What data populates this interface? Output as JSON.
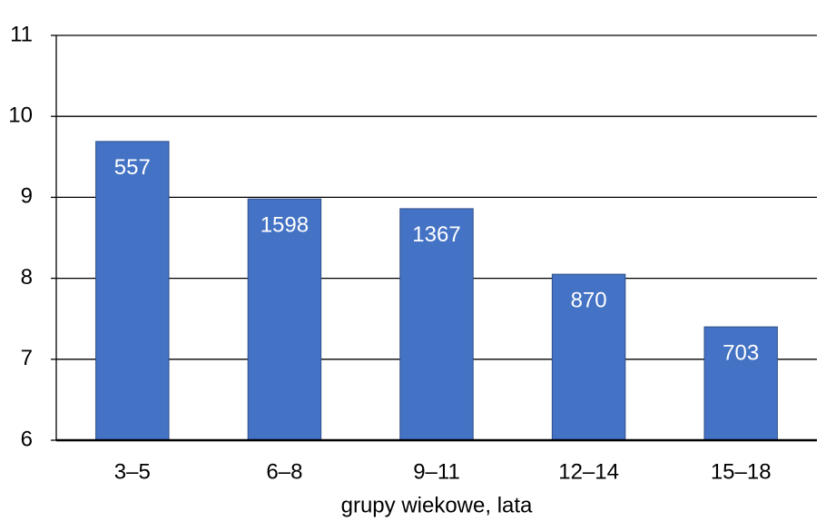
{
  "chart_data": {
    "type": "bar",
    "x_label": "grupy wiekowe, lata",
    "categories": [
      "3–5",
      "6–8",
      "9–11",
      "12–14",
      "15–18"
    ],
    "values": [
      9.69,
      8.98,
      8.86,
      8.05,
      7.4
    ],
    "n_labels": [
      557,
      1598,
      1367,
      870,
      703
    ],
    "color": "#4472c4",
    "ylim": [
      6,
      11
    ],
    "yticks": [
      6,
      7,
      8,
      9,
      10,
      11
    ],
    "grid": true
  }
}
